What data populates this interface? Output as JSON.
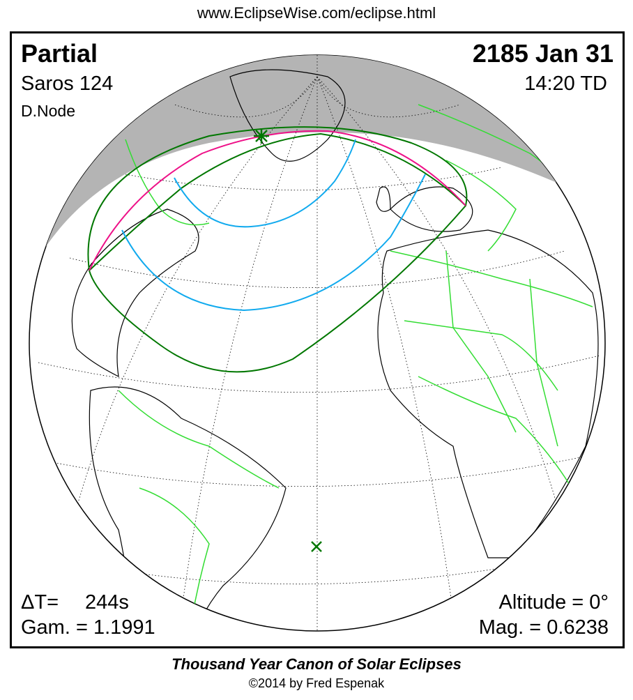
{
  "url": "www.EclipseWise.com/eclipse.html",
  "eclipse": {
    "type": "Partial",
    "date": "2185 Jan 31",
    "saros": "Saros 124",
    "time": "14:20 TD",
    "node": "D.Node",
    "delta_t_label": "ΔT=",
    "delta_t_value": "244s",
    "gamma": "Gam. = 1.1991",
    "altitude": "Altitude =  0°",
    "magnitude": "Mag. = 0.6238"
  },
  "footer": {
    "title": "Thousand Year Canon of Solar Eclipses",
    "copyright": "©2014 by Fred Espenak"
  },
  "colors": {
    "night": "#b4b4b4",
    "borders": "#33dd33",
    "penumbra_limit": "#007700",
    "rise_set": "#ee1188",
    "magnitude_curves": "#11aaee"
  }
}
